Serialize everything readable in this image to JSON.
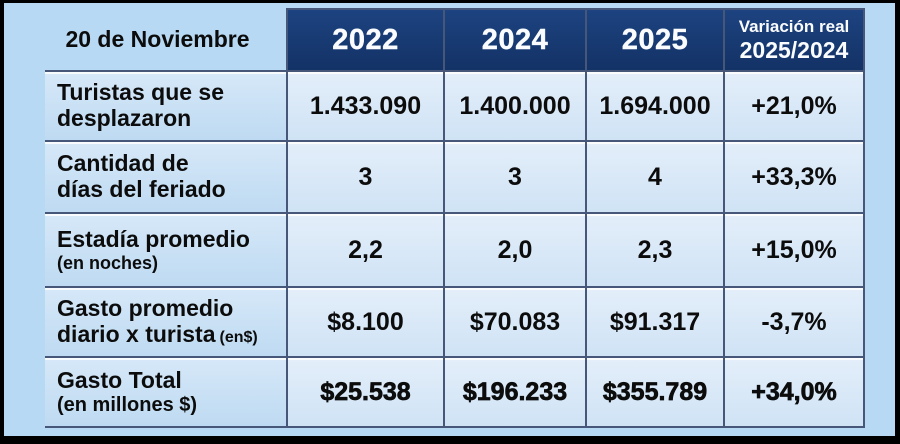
{
  "header": {
    "row_label": "20 de Noviembre",
    "years": [
      "2022",
      "2024",
      "2025"
    ],
    "variation_line1": "Variación real",
    "variation_line2": "2025/2024"
  },
  "rows": [
    {
      "label1": "Turistas que se",
      "label2": "desplazaron",
      "values": [
        "1.433.090",
        "1.400.000",
        "1.694.000"
      ],
      "variation": "+21,0%"
    },
    {
      "label1": "Cantidad de",
      "label2": "días del feriado",
      "values": [
        "3",
        "3",
        "4"
      ],
      "variation": "+33,3%"
    },
    {
      "label1": "Estadía promedio",
      "label2": "(en noches)",
      "values": [
        "2,2",
        "2,0",
        "2,3"
      ],
      "variation": "+15,0%"
    },
    {
      "label1": "Gasto promedio",
      "label2": "diario x turista",
      "suffix": "(en$)",
      "values": [
        "$8.100",
        "$70.083",
        "$91.317"
      ],
      "variation": "-3,7%"
    },
    {
      "label1": "Gasto Total",
      "label2": "(en millones $)",
      "values": [
        "$25.538",
        "$196.233",
        "$355.789"
      ],
      "variation": "+34,0%"
    }
  ],
  "colors": {
    "page_bg": "#b7d9f3",
    "header_bg": "#163a72",
    "header_text": "#fafcff",
    "grid_line": "#46577a",
    "cell_bg": "#d9e8f7",
    "frame": "#000000",
    "body_text": "#0c0c0c"
  },
  "chart_data": {
    "type": "table",
    "title": "20 de Noviembre",
    "columns": [
      "",
      "2022",
      "2024",
      "2025",
      "Variación real 2025/2024"
    ],
    "rows": [
      [
        "Turistas que se desplazaron",
        "1.433.090",
        "1.400.000",
        "1.694.000",
        "+21,0%"
      ],
      [
        "Cantidad de días del feriado",
        "3",
        "3",
        "4",
        "+33,3%"
      ],
      [
        "Estadía promedio (en noches)",
        "2,2",
        "2,0",
        "2,3",
        "+15,0%"
      ],
      [
        "Gasto promedio diario x turista (en$)",
        "$8.100",
        "$70.083",
        "$91.317",
        "-3,7%"
      ],
      [
        "Gasto Total (en millones $)",
        "$25.538",
        "$196.233",
        "$355.789",
        "+34,0%"
      ]
    ]
  }
}
